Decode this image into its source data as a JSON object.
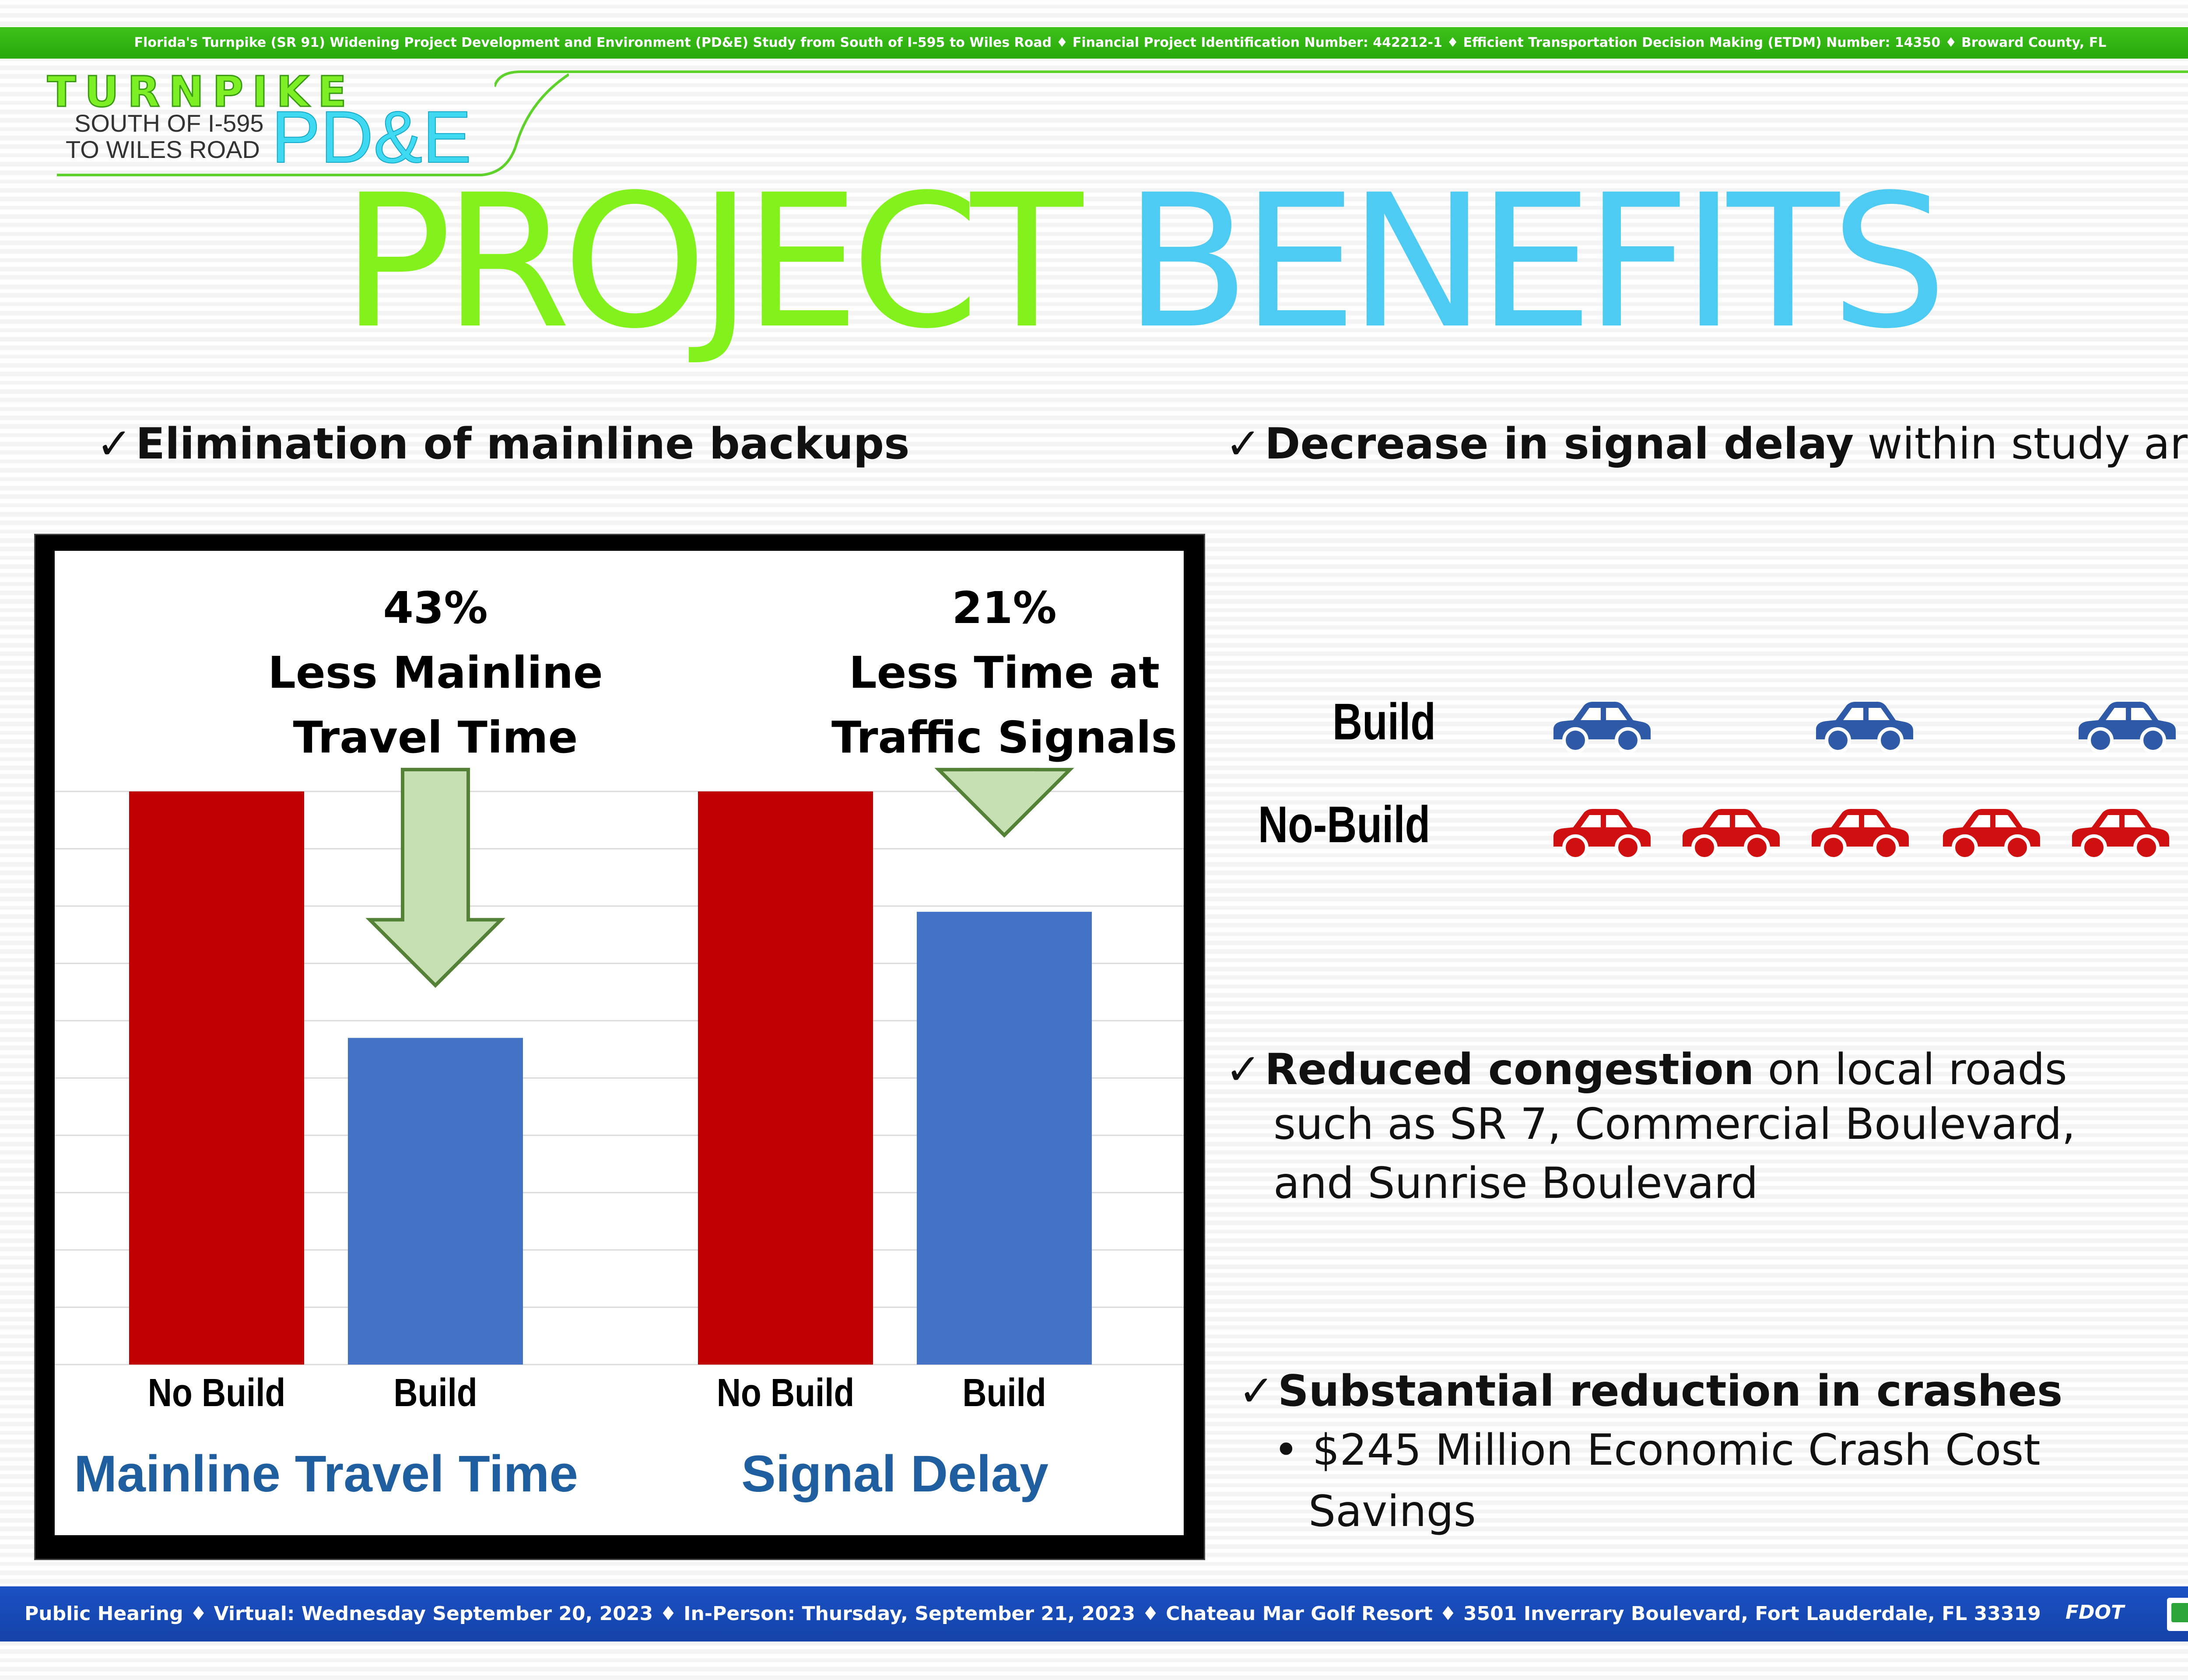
{
  "header": {
    "banner": "Florida's Turnpike (SR 91) Widening Project Development and Environment (PD&E) Study from South of I-595 to Wiles Road  ♦  Financial Project Identification Number: 442212-1 ♦ Efficient Transportation Decision Making (ETDM) Number: 14350 ♦ Broward County, FL"
  },
  "logo": {
    "turnpike": "TURNPIKE",
    "south": "SOUTH OF I-595",
    "wiles": "TO WILES ROAD",
    "pde": "PD&E"
  },
  "title": {
    "part1": "PROJECT",
    "part2": "BENEFITS"
  },
  "colors": {
    "no_build_red": "#c00000",
    "build_blue": "#4472c4",
    "arrow_green": "#c6e0b4",
    "label_blue": "#1f5fa0",
    "car_red": "#d01010",
    "car_blue": "#2e5aa8"
  },
  "benefits": {
    "b1": {
      "check": "✓",
      "bold": "Elimination of mainline backups"
    },
    "b2": {
      "check": "✓",
      "bold": "Decrease in signal delay",
      "rest": " within study area"
    },
    "b3": {
      "check": "✓",
      "bold": "Reduced congestion",
      "rest": " on local roads",
      "line2": "such as SR 7, Commercial Boulevard,",
      "line3": "and Sunrise Boulevard"
    },
    "b4": {
      "check": "✓",
      "bold": "Substantial reduction in crashes",
      "bullet": "•",
      "sub1": "$245 Million Economic Crash Cost",
      "sub2": "Savings"
    }
  },
  "chart_data": {
    "type": "bar",
    "groups": [
      {
        "name": "Mainline Travel Time",
        "categories": [
          "No Build",
          "Build"
        ],
        "values": [
          100,
          57
        ],
        "annotation": [
          "43%",
          "Less Mainline",
          "Travel Time"
        ]
      },
      {
        "name": "Signal Delay",
        "categories": [
          "No Build",
          "Build"
        ],
        "values": [
          100,
          79
        ],
        "annotation": [
          "21%",
          "Less Time at",
          "Traffic Signals"
        ]
      }
    ],
    "ylim": [
      0,
      100
    ],
    "grid": true,
    "arrow_icon": "down-arrow-icon"
  },
  "cars": {
    "build_label": "Build",
    "nobuild_label": "No-Build",
    "build_count": 3,
    "nobuild_count": 5,
    "icon": "car-icon"
  },
  "footer": {
    "text": "Public Hearing   ♦ Virtual: Wednesday September 20, 2023 ♦ In-Person: Thursday, September 21, 2023 ♦ Chateau Mar Golf Resort ♦ 3501 Inverrary Boulevard, Fort Lauderdale, FL 33319",
    "fdot": "FDOT"
  }
}
